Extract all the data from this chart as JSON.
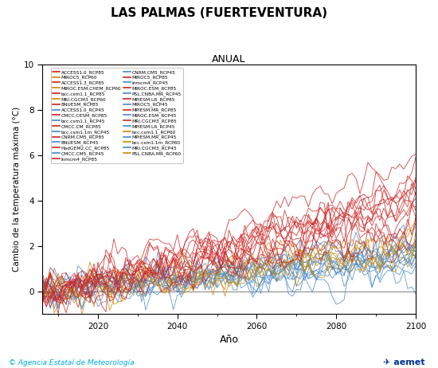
{
  "title": "LAS PALMAS (FUERTEVENTURA)",
  "subtitle": "ANUAL",
  "xlabel": "Año",
  "ylabel": "Cambio de la temperatura máxima (°C)",
  "xlim": [
    2006,
    2100
  ],
  "ylim": [
    -1,
    10
  ],
  "yticks": [
    0,
    2,
    4,
    6,
    8,
    10
  ],
  "xticks": [
    2020,
    2040,
    2060,
    2080,
    2100
  ],
  "background_color": "#ffffff",
  "footer_text": "© Agencia Estatal de Meteorología",
  "col1_labels": [
    "ACCESS1.0_RCP85",
    "ACCESS1.3_RCP85",
    "bcc.csm1.1_RCP85",
    "BNUESM_RCP85",
    "CMCC.CESM_RCP85",
    "CMCC.CM_RCP85",
    "CNRM.CM5_RCP85",
    "HadGEM2.CC_RCP85",
    "Inmcm4_RCP85",
    "MIROC5_RCP85",
    "MIROC.ESM_RCP85",
    "MPIESM.LR_RCP85",
    "MPIESM.MR_RCP85",
    "MRI.CGCM3_RCP85",
    "bcc.csm1.1_RCP60",
    "bcc.csm1.1m_RCP60",
    "PSL.CNBA.MR_RCP60"
  ],
  "col2_labels": [
    "MIROC5_RCP60",
    "MIROC.ESM.CHEM_RCP60",
    "MRI.CGCM3_RCP60",
    "ACCESS1.0_RCP45",
    "bcc.csm1.1_RCP45",
    "bcc.csm1.1m_RCP45",
    "BNUESM_RCP45",
    "CMCC.CM5_RCP45",
    "CNRM.CM5_RCP45",
    "Inmcm4_RCP45",
    "PSL.CNBA.MR_RCP45",
    "MIROC5_RCP45",
    "MIROC.ESM_RCP45",
    "MPIESM.LR_RCP45",
    "MPIESM.MR_RCP45",
    "MRI.CGCM3_RCP45"
  ],
  "color_rcp85": "#cc2222",
  "color_rcp60": "#cc8800",
  "color_rcp45": "#4488cc",
  "n_rcp85": 14,
  "n_rcp60": 6,
  "n_rcp45": 13,
  "seed": 42,
  "start_year": 2006,
  "end_year": 2100
}
